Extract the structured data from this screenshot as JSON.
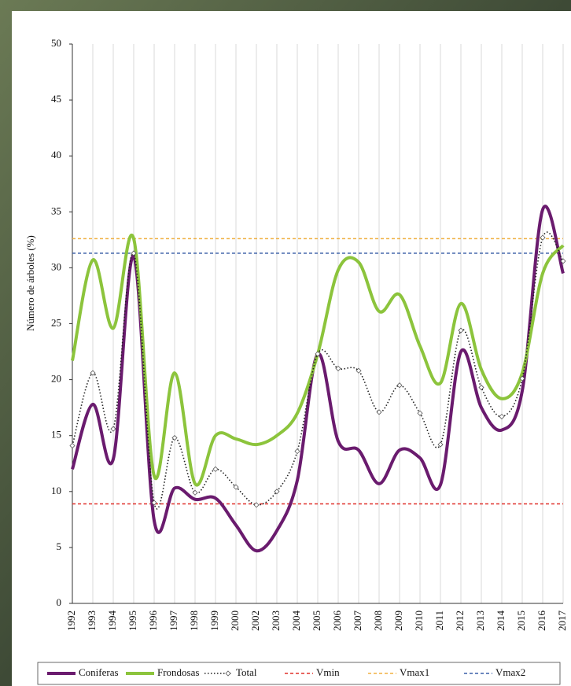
{
  "chart_data": {
    "type": "line",
    "y_label": "Número de árboles (%)",
    "categories": [
      "1992",
      "1993",
      "1994",
      "1995",
      "1996",
      "1997",
      "1998",
      "1999",
      "2000",
      "2002",
      "2003",
      "2004",
      "2005",
      "2006",
      "2007",
      "2008",
      "2009",
      "2010",
      "2011",
      "2012",
      "2013",
      "2014",
      "2015",
      "2016",
      "2017"
    ],
    "series": [
      {
        "name": "Coniferas",
        "color": "#6a1b6e",
        "style": "solid",
        "values": [
          12,
          17.8,
          12.9,
          31,
          7.4,
          10.3,
          9.3,
          9.4,
          7,
          4.7,
          6.5,
          11,
          22.3,
          14.5,
          13.7,
          10.7,
          13.7,
          13,
          10.6,
          22.5,
          17.5,
          15.5,
          19,
          35.2,
          29.5
        ]
      },
      {
        "name": "Frondosas",
        "color": "#8cc43c",
        "style": "solid",
        "values": [
          21.7,
          30.7,
          24.6,
          32.6,
          11.4,
          20.6,
          10.7,
          15,
          14.7,
          14.2,
          15,
          17,
          22.3,
          29.8,
          30.5,
          26.1,
          27.6,
          23,
          19.7,
          26.8,
          20.9,
          18.3,
          20.6,
          29.5,
          32
        ]
      },
      {
        "name": "Total",
        "color": "#222222",
        "style": "dotted",
        "markers": true,
        "values": [
          14.1,
          20.6,
          15.6,
          31.3,
          9,
          14.8,
          9.9,
          12,
          10.4,
          8.8,
          10,
          13.6,
          22.3,
          21,
          20.8,
          17.1,
          19.5,
          17,
          14.2,
          24.4,
          19.3,
          16.7,
          20.1,
          32.7,
          30.6
        ]
      }
    ],
    "reference_lines": [
      {
        "name": "Vmin",
        "color": "#e0302a",
        "value": 8.9
      },
      {
        "name": "Vmax1",
        "color": "#f0b040",
        "value": 32.6
      },
      {
        "name": "Vmax2",
        "color": "#3a5fa8",
        "value": 31.3
      }
    ],
    "ylim": [
      0,
      50
    ],
    "yticks": [
      0,
      5,
      10,
      15,
      20,
      25,
      30,
      35,
      40,
      45,
      50
    ],
    "grid": "vertical"
  }
}
